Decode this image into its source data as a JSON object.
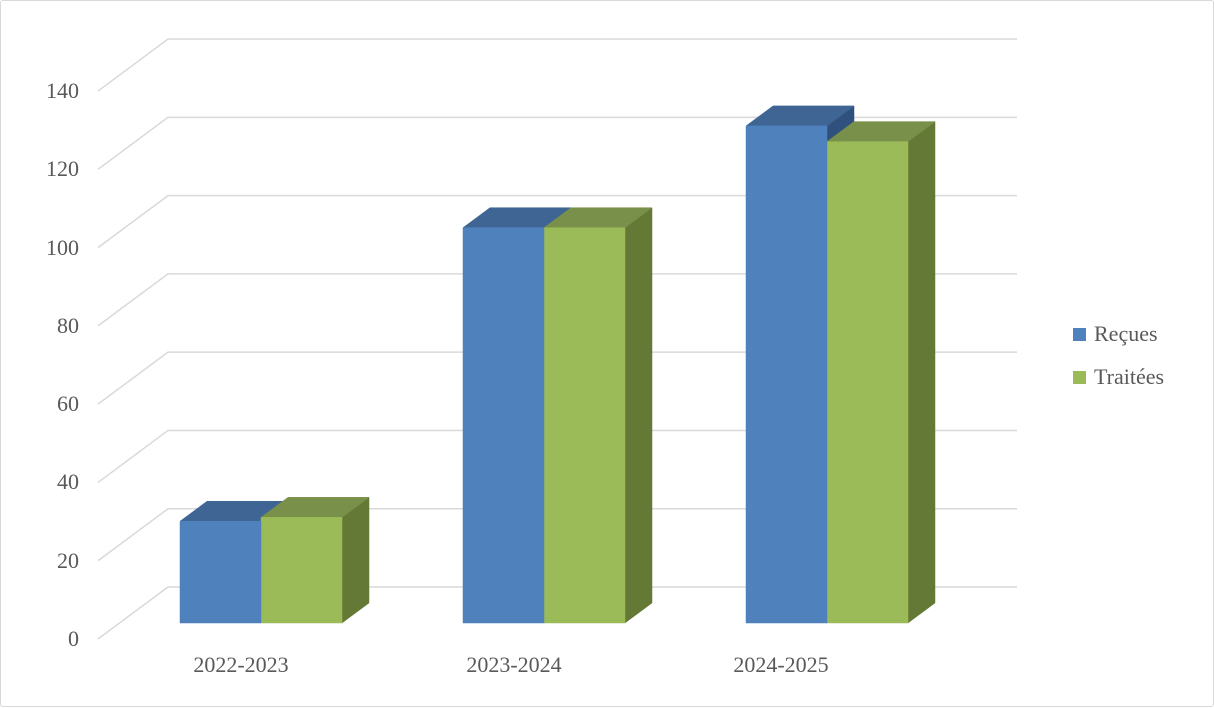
{
  "chart_data": {
    "type": "bar",
    "style": "3d-clustered-column",
    "title": "",
    "categories": [
      "2022-2023",
      "2023-2024",
      "2024-2025"
    ],
    "series": [
      {
        "name": "Reçues",
        "values": [
          26,
          101,
          127
        ],
        "color": "#4F81BC",
        "color_top": "#3E6593",
        "color_side": "#30517D"
      },
      {
        "name": "Traitées",
        "values": [
          27,
          101,
          123
        ],
        "color": "#9BBB59",
        "color_top": "#79904A",
        "color_side": "#657936"
      }
    ],
    "y_axis": {
      "ticks": [
        0,
        20,
        40,
        60,
        80,
        100,
        120,
        140
      ],
      "range": [
        0,
        140
      ]
    },
    "x_axis": {
      "labels": [
        "2022-2023",
        "2023-2024",
        "2024-2025"
      ]
    },
    "grid": true,
    "legend": {
      "position": "right-middle",
      "items": [
        "Reçues",
        "Traitées"
      ]
    },
    "colors": {
      "text": "#595959",
      "gridline": "#D9D9D9",
      "background": "#FFFFFF",
      "frame_border": "#D9D9D9"
    }
  }
}
